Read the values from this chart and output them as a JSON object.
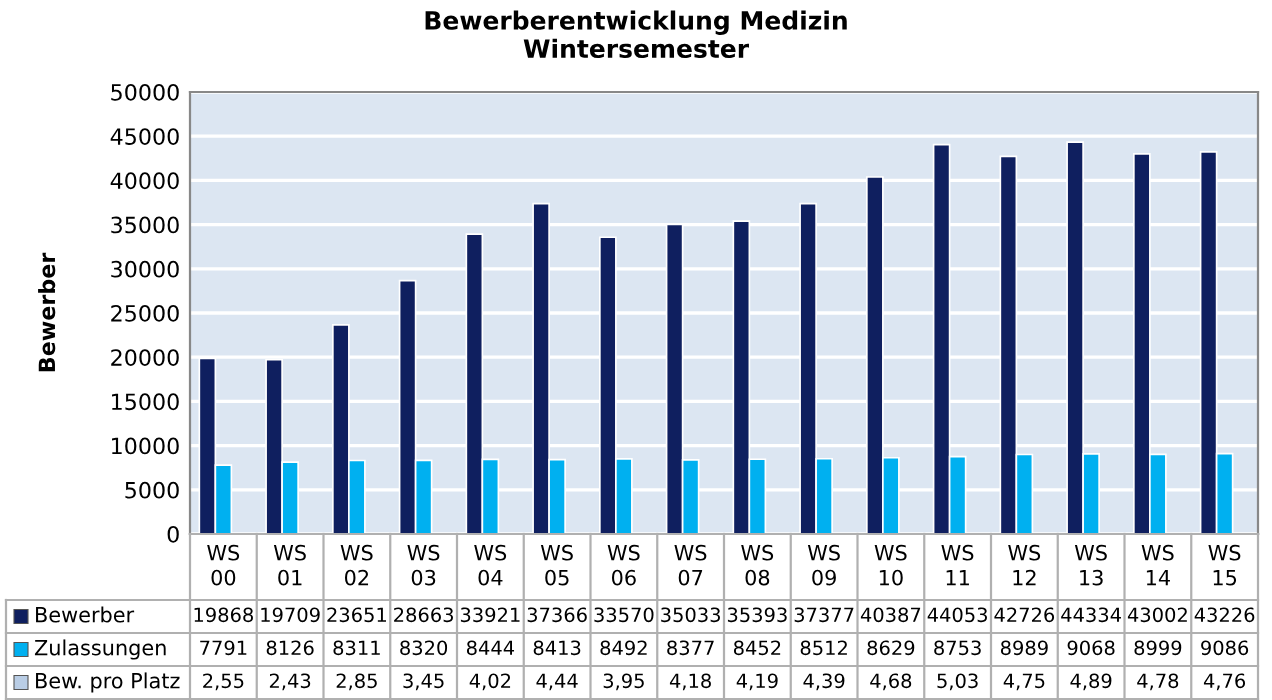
{
  "chart_data": {
    "type": "bar",
    "title": "Bewerberentwicklung Medizin\nWintersemester",
    "ylabel": "Bewerber",
    "categories": [
      "WS 00",
      "WS 01",
      "WS 02",
      "WS 03",
      "WS 04",
      "WS 05",
      "WS 06",
      "WS 07",
      "WS 08",
      "WS 09",
      "WS 10",
      "WS 11",
      "WS 12",
      "WS 13",
      "WS 14",
      "WS 15"
    ],
    "series": [
      {
        "name": "Bewerber",
        "color": "#0f1f5f",
        "values": [
          19868,
          19709,
          23651,
          28663,
          33921,
          37366,
          33570,
          35033,
          35393,
          37377,
          40387,
          44053,
          42726,
          44334,
          43002,
          43226
        ],
        "value_labels": [
          "19868",
          "19709",
          "23651",
          "28663",
          "33921",
          "37366",
          "33570",
          "35033",
          "35393",
          "37377",
          "40387",
          "44053",
          "42726",
          "44334",
          "43002",
          "43226"
        ]
      },
      {
        "name": "Zulassungen",
        "color": "#00b0f0",
        "values": [
          7791,
          8126,
          8311,
          8320,
          8444,
          8413,
          8492,
          8377,
          8452,
          8512,
          8629,
          8753,
          8989,
          9068,
          8999,
          9086
        ],
        "value_labels": [
          "7791",
          "8126",
          "8311",
          "8320",
          "8444",
          "8413",
          "8492",
          "8377",
          "8452",
          "8512",
          "8629",
          "8753",
          "8989",
          "9068",
          "8999",
          "9086"
        ]
      },
      {
        "name": "Bew. pro Platz",
        "color": "#b9cde5",
        "values": [
          2.55,
          2.43,
          2.85,
          3.45,
          4.02,
          4.44,
          3.95,
          4.18,
          4.19,
          4.39,
          4.68,
          5.03,
          4.75,
          4.89,
          4.78,
          4.76
        ],
        "value_labels": [
          "2,55",
          "2,43",
          "2,85",
          "3,45",
          "4,02",
          "4,44",
          "3,95",
          "4,18",
          "4,19",
          "4,39",
          "4,68",
          "5,03",
          "4,75",
          "4,89",
          "4,78",
          "4,76"
        ]
      }
    ],
    "ylim": [
      0,
      50000
    ],
    "yticks": [
      0,
      5000,
      10000,
      15000,
      20000,
      25000,
      30000,
      35000,
      40000,
      45000,
      50000
    ],
    "grid": "y",
    "legend": "bottom left"
  }
}
